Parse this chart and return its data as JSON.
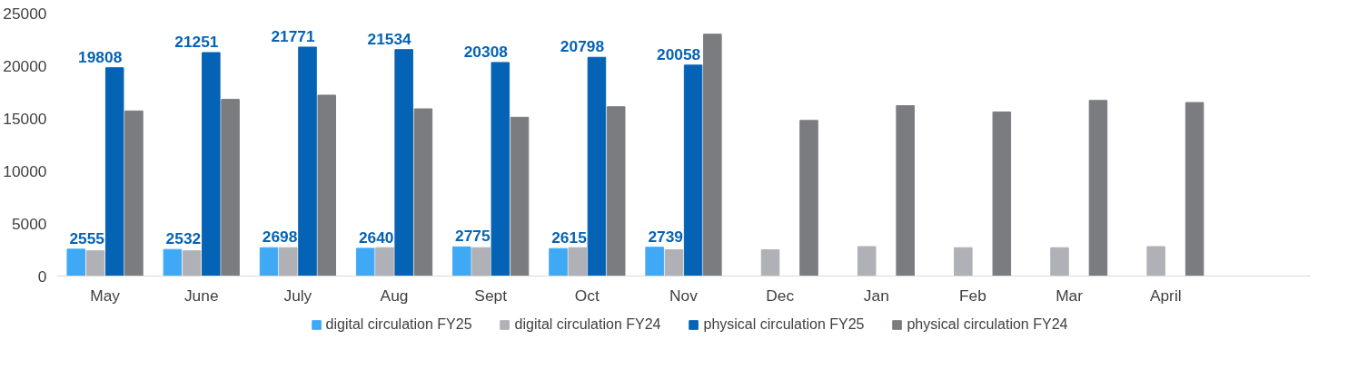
{
  "chart_data": {
    "type": "bar",
    "categories": [
      "May",
      "June",
      "July",
      "Aug",
      "Sept",
      "Oct",
      "Nov",
      "Dec",
      "Jan",
      "Feb",
      "Mar",
      "April",
      null
    ],
    "series": [
      {
        "name": "digital circulation FY25",
        "color": "#3fa9f5",
        "values": [
          2555,
          2532,
          2698,
          2640,
          2775,
          2615,
          2739,
          null,
          null,
          null,
          null,
          null,
          null
        ],
        "value_labels": [
          "2555",
          "2532",
          "2698",
          "2640",
          "2775",
          "2615",
          "2739",
          null,
          null,
          null,
          null,
          null,
          null
        ]
      },
      {
        "name": "digital circulation FY24",
        "color": "#b0b1b6",
        "values": [
          2400,
          2400,
          2700,
          2700,
          2700,
          2700,
          2500,
          2500,
          2800,
          2700,
          2700,
          2800,
          null
        ]
      },
      {
        "name": "physical circulation FY25",
        "color": "#0563b5",
        "values": [
          19808,
          21251,
          21771,
          21534,
          20308,
          20798,
          20058,
          null,
          null,
          null,
          null,
          null,
          null
        ],
        "value_labels": [
          "19808",
          "21251",
          "21771",
          "21534",
          "20308",
          "20798",
          "20058",
          null,
          null,
          null,
          null,
          null,
          null
        ]
      },
      {
        "name": "physical circulation FY24",
        "color": "#7a7c80",
        "values": [
          15700,
          16800,
          17200,
          15900,
          15100,
          16100,
          23000,
          14800,
          16200,
          15600,
          16700,
          16500,
          null
        ]
      }
    ],
    "ylim": [
      0,
      25000
    ],
    "yticks": [
      0,
      5000,
      10000,
      15000,
      20000,
      25000
    ],
    "grid": false,
    "legend": "bottom"
  }
}
